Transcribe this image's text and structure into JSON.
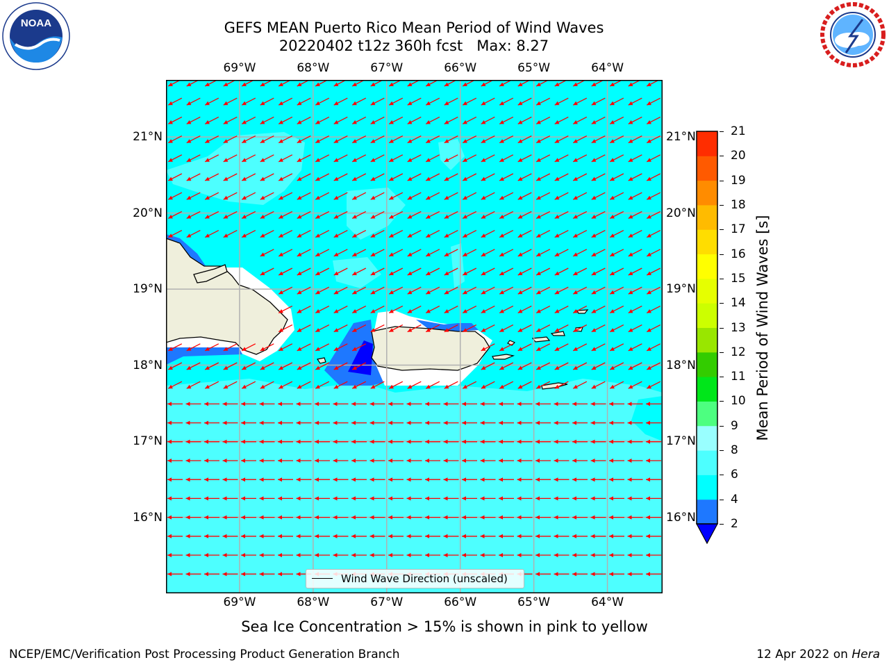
{
  "header": {
    "title_line1": "GEFS MEAN Puerto Rico Mean Period of Wind Waves",
    "title_line2": "20220402 t12z 360h fcst   Max: 8.27"
  },
  "logos": {
    "noaa_text": "NOAA",
    "noaa_ring_text": "NATIONAL OCEANIC AND ATMOSPHERIC ADMINISTRATION · U.S. DEPARTMENT OF COMMERCE",
    "nws_ring_text": "NATIONAL WEATHER SERVICE"
  },
  "map": {
    "lon_ticks": [
      "69°W",
      "68°W",
      "67°W",
      "66°W",
      "65°W",
      "64°W"
    ],
    "lat_ticks": [
      "21°N",
      "20°N",
      "19°N",
      "18°N",
      "17°N",
      "16°N"
    ],
    "lon_range": [
      -70,
      -63.25
    ],
    "lat_range": [
      15,
      21.75
    ],
    "legend_label": "Wind Wave Direction (unscaled)",
    "arrow_color": "#ff0000",
    "land_color": "#efefdc",
    "ocean_color_4_6": "#00ffff",
    "ocean_color_6_8": "#4dffff",
    "ocean_color_8_9": "#99ffff"
  },
  "colorbar": {
    "title": "Mean Period of Wind Waves [s]",
    "levels": [
      "2",
      "4",
      "6",
      "8",
      "9",
      "10",
      "11",
      "12",
      "13",
      "14",
      "15",
      "16",
      "17",
      "18",
      "19",
      "20",
      "21"
    ],
    "colors": [
      "#1e78ff",
      "#00ffff",
      "#4dffff",
      "#99ffff",
      "#4dff80",
      "#00e61a",
      "#33cc00",
      "#99e600",
      "#ccff00",
      "#e6ff00",
      "#ffff00",
      "#ffdd00",
      "#ffbb00",
      "#ff8c00",
      "#ff5a00",
      "#ff2d00",
      "#ff0000"
    ],
    "under_color": "#0000ff"
  },
  "caption": "Sea Ice Concentration > 15% is shown in pink to yellow",
  "footer": {
    "left": "NCEP/EMC/Verification Post Processing Product Generation Branch",
    "right_date": "12 Apr 2022 on ",
    "right_host": "Hera"
  }
}
